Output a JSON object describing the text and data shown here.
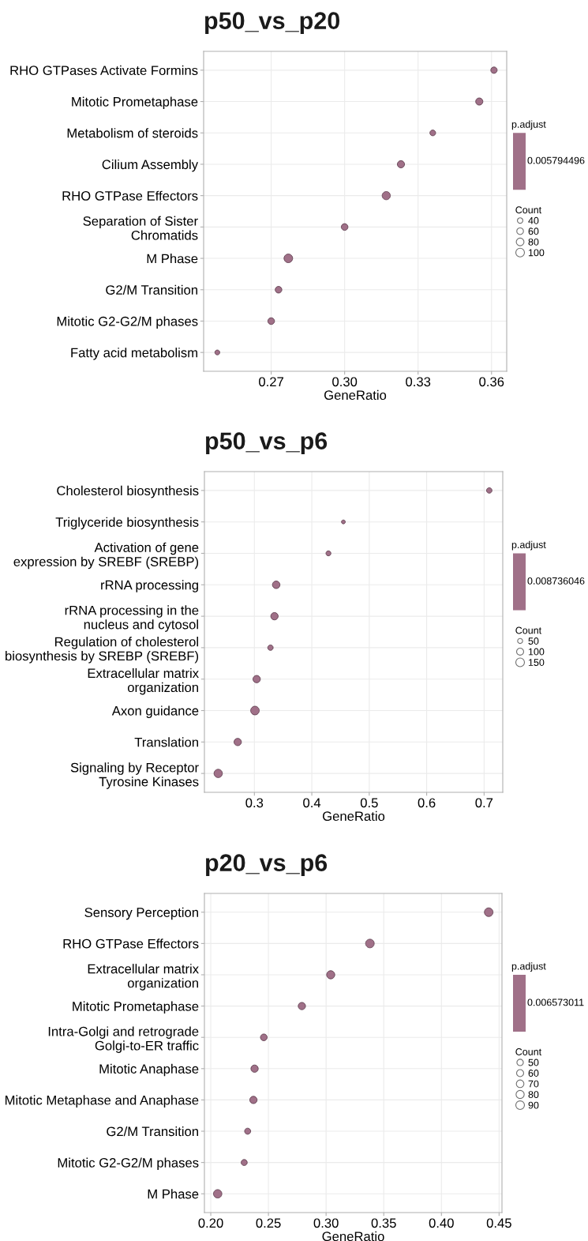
{
  "chart_data": [
    {
      "type": "bubble",
      "orientation": "horizontal",
      "title": "p50_vs_p20",
      "xlabel": "GeneRatio",
      "clabel": "p.adjust",
      "legend_title": "Count",
      "grid": true,
      "color": "#a07088",
      "categories": [
        "RHO GTPases Activate Formins",
        "Mitotic Prometaphase",
        "Metabolism of steroids",
        "Cilium Assembly",
        "RHO GTPase Effectors",
        "Separation of Sister\nChromatids",
        "M Phase",
        "G2/M Transition",
        "Mitotic G2-G2/M phases",
        "Fatty acid metabolism"
      ],
      "values": [
        0.361,
        0.355,
        0.336,
        0.323,
        0.317,
        0.3,
        0.277,
        0.273,
        0.27,
        0.248
      ],
      "sizes": [
        55,
        70,
        45,
        70,
        90,
        60,
        100,
        60,
        60,
        32
      ],
      "size_legend": [
        40,
        60,
        80,
        100
      ],
      "annotations": [
        "0.005794496"
      ],
      "xlim": [
        0.2424,
        0.3662
      ],
      "xticks": [
        0.27,
        {
          "value": 0.3,
          "label": "0.30"
        },
        0.33,
        0.36
      ]
    },
    {
      "type": "bubble",
      "orientation": "horizontal",
      "title": "p50_vs_p6",
      "xlabel": "GeneRatio",
      "clabel": "p.adjust",
      "legend_title": "Count",
      "grid": true,
      "color": "#a07088",
      "categories": [
        "Cholesterol biosynthesis",
        "Triglyceride biosynthesis",
        "Activation of gene\nexpression by SREBF (SREBP)",
        "rRNA processing",
        "rRNA processing in the\nnucleus and cytosol",
        "Regulation of cholesterol\nbiosynthesis by SREBP (SREBF)",
        "Extracellular matrix\norganization",
        "Axon guidance",
        "Translation",
        "Signaling by Receptor\nTyrosine Kinases"
      ],
      "values": [
        0.709,
        0.455,
        0.429,
        0.338,
        0.335,
        0.328,
        0.304,
        0.301,
        0.271,
        0.237
      ],
      "sizes": [
        60,
        30,
        50,
        115,
        110,
        60,
        110,
        150,
        110,
        140
      ],
      "size_legend": [
        50,
        100,
        150
      ],
      "annotations": [
        "0.008736046"
      ],
      "xlim": [
        0.213,
        0.7325
      ],
      "xticks": [
        0.3,
        0.4,
        0.5,
        0.6,
        0.7
      ]
    },
    {
      "type": "bubble",
      "orientation": "horizontal",
      "title": "p20_vs_p6",
      "xlabel": "GeneRatio",
      "clabel": "p.adjust",
      "legend_title": "Count",
      "grid": true,
      "color": "#a07088",
      "categories": [
        "Sensory Perception",
        "RHO GTPase Effectors",
        "Extracellular matrix\norganization",
        "Mitotic Prometaphase",
        "Intra-Golgi and retrograde\nGolgi-to-ER traffic",
        "Mitotic Anaphase",
        "Mitotic Metaphase and Anaphase",
        "G2/M Transition",
        "Mitotic G2-G2/M phases",
        "M Phase"
      ],
      "values": [
        0.441,
        0.338,
        0.304,
        0.279,
        0.246,
        0.238,
        0.237,
        0.232,
        0.229,
        0.206
      ],
      "sizes": [
        90,
        90,
        80,
        65,
        55,
        65,
        65,
        45,
        45,
        85
      ],
      "size_legend": [
        50,
        60,
        70,
        80,
        90
      ],
      "annotations": [
        "0.006573011"
      ],
      "xlim": [
        0.1945,
        0.4525
      ],
      "xticks": [
        {
          "value": 0.2,
          "label": "0.20"
        },
        0.25,
        {
          "value": 0.3,
          "label": "0.30"
        },
        0.35,
        {
          "value": 0.4,
          "label": "0.40"
        },
        0.45
      ]
    }
  ]
}
